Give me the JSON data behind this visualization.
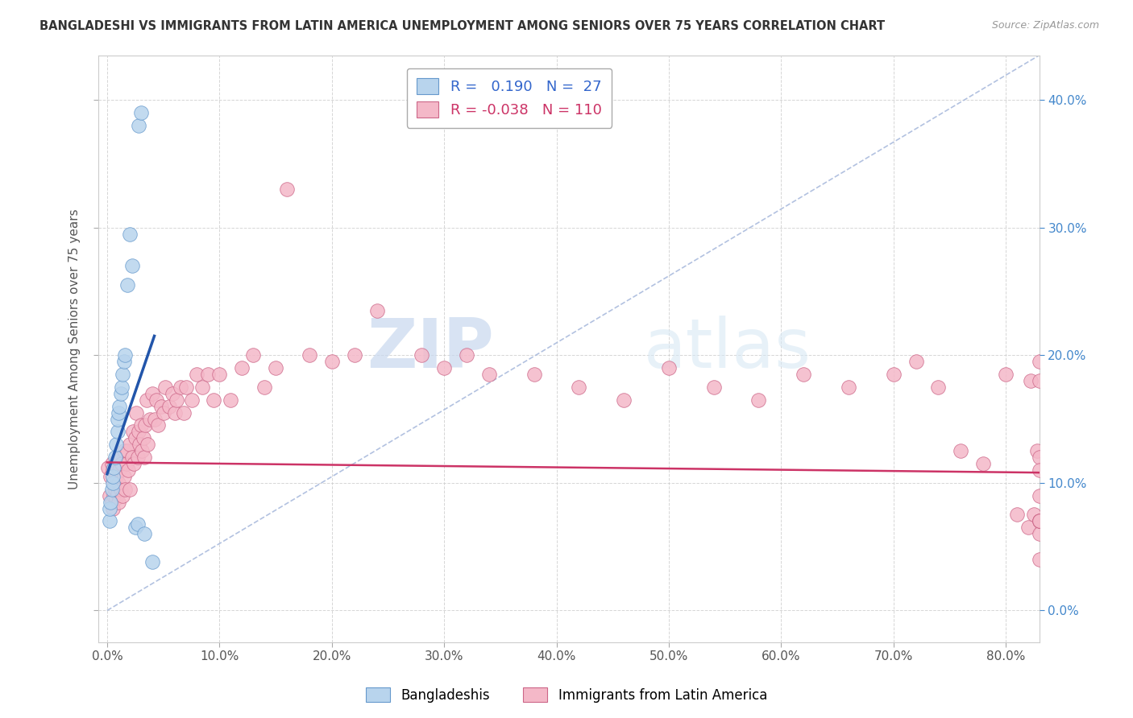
{
  "title": "BANGLADESHI VS IMMIGRANTS FROM LATIN AMERICA UNEMPLOYMENT AMONG SENIORS OVER 75 YEARS CORRELATION CHART",
  "source": "Source: ZipAtlas.com",
  "ylabel": "Unemployment Among Seniors over 75 years",
  "R_blue": 0.19,
  "N_blue": 27,
  "R_pink": -0.038,
  "N_pink": 110,
  "legend_label_blue": "Bangladeshis",
  "legend_label_pink": "Immigrants from Latin America",
  "blue_color": "#b8d4ed",
  "blue_edge_color": "#6699cc",
  "blue_line_color": "#2255aa",
  "pink_color": "#f4b8c8",
  "pink_edge_color": "#cc6688",
  "pink_line_color": "#cc3366",
  "dashed_line_color": "#aabbdd",
  "background_color": "#ffffff",
  "watermark_zip": "ZIP",
  "watermark_atlas": "atlas",
  "xlim": [
    -0.008,
    0.83
  ],
  "ylim": [
    -0.025,
    0.435
  ],
  "x_tick_vals": [
    0.0,
    0.1,
    0.2,
    0.3,
    0.4,
    0.5,
    0.6,
    0.7,
    0.8
  ],
  "x_tick_labels": [
    "0.0%",
    "10.0%",
    "20.0%",
    "30.0%",
    "40.0%",
    "50.0%",
    "60.0%",
    "70.0%",
    "80.0%"
  ],
  "y_tick_vals": [
    0.0,
    0.1,
    0.2,
    0.3,
    0.4
  ],
  "y_tick_labels_right": [
    "0.0%",
    "10.0%",
    "20.0%",
    "30.0%",
    "40.0%"
  ],
  "blue_x": [
    0.002,
    0.002,
    0.003,
    0.004,
    0.005,
    0.005,
    0.006,
    0.007,
    0.008,
    0.009,
    0.009,
    0.01,
    0.011,
    0.012,
    0.013,
    0.014,
    0.015,
    0.016,
    0.018,
    0.02,
    0.022,
    0.025,
    0.027,
    0.028,
    0.03,
    0.033,
    0.04
  ],
  "blue_y": [
    0.07,
    0.08,
    0.085,
    0.095,
    0.1,
    0.105,
    0.112,
    0.12,
    0.13,
    0.14,
    0.15,
    0.155,
    0.16,
    0.17,
    0.175,
    0.185,
    0.195,
    0.2,
    0.255,
    0.295,
    0.27,
    0.065,
    0.068,
    0.38,
    0.39,
    0.06,
    0.038
  ],
  "pink_x": [
    0.001,
    0.002,
    0.003,
    0.004,
    0.004,
    0.005,
    0.005,
    0.006,
    0.006,
    0.007,
    0.007,
    0.008,
    0.008,
    0.009,
    0.009,
    0.01,
    0.01,
    0.011,
    0.012,
    0.012,
    0.013,
    0.014,
    0.015,
    0.015,
    0.016,
    0.017,
    0.018,
    0.019,
    0.02,
    0.02,
    0.022,
    0.023,
    0.024,
    0.025,
    0.026,
    0.027,
    0.028,
    0.029,
    0.03,
    0.031,
    0.032,
    0.033,
    0.034,
    0.035,
    0.036,
    0.038,
    0.04,
    0.042,
    0.044,
    0.045,
    0.048,
    0.05,
    0.052,
    0.055,
    0.058,
    0.06,
    0.062,
    0.065,
    0.068,
    0.07,
    0.075,
    0.08,
    0.085,
    0.09,
    0.095,
    0.1,
    0.11,
    0.12,
    0.13,
    0.14,
    0.15,
    0.16,
    0.18,
    0.2,
    0.22,
    0.24,
    0.28,
    0.3,
    0.32,
    0.34,
    0.38,
    0.42,
    0.46,
    0.5,
    0.54,
    0.58,
    0.62,
    0.66,
    0.7,
    0.72,
    0.74,
    0.76,
    0.78,
    0.8,
    0.81,
    0.82,
    0.822,
    0.825,
    0.828,
    0.83,
    0.83,
    0.83,
    0.83,
    0.83,
    0.83,
    0.83,
    0.83,
    0.83,
    0.83,
    0.83
  ],
  "pink_y": [
    0.112,
    0.09,
    0.105,
    0.085,
    0.115,
    0.08,
    0.11,
    0.09,
    0.1,
    0.115,
    0.095,
    0.088,
    0.105,
    0.092,
    0.118,
    0.085,
    0.1,
    0.11,
    0.12,
    0.095,
    0.115,
    0.09,
    0.105,
    0.125,
    0.095,
    0.115,
    0.125,
    0.11,
    0.13,
    0.095,
    0.12,
    0.14,
    0.115,
    0.135,
    0.155,
    0.12,
    0.14,
    0.13,
    0.145,
    0.125,
    0.135,
    0.12,
    0.145,
    0.165,
    0.13,
    0.15,
    0.17,
    0.15,
    0.165,
    0.145,
    0.16,
    0.155,
    0.175,
    0.16,
    0.17,
    0.155,
    0.165,
    0.175,
    0.155,
    0.175,
    0.165,
    0.185,
    0.175,
    0.185,
    0.165,
    0.185,
    0.165,
    0.19,
    0.2,
    0.175,
    0.19,
    0.33,
    0.2,
    0.195,
    0.2,
    0.235,
    0.2,
    0.19,
    0.2,
    0.185,
    0.185,
    0.175,
    0.165,
    0.19,
    0.175,
    0.165,
    0.185,
    0.175,
    0.185,
    0.195,
    0.175,
    0.125,
    0.115,
    0.185,
    0.075,
    0.065,
    0.18,
    0.075,
    0.125,
    0.195,
    0.18,
    0.09,
    0.06,
    0.12,
    0.07,
    0.07,
    0.07,
    0.07,
    0.04,
    0.11
  ],
  "blue_line_x": [
    0.0,
    0.042
  ],
  "blue_line_y": [
    0.107,
    0.215
  ],
  "pink_line_x": [
    0.0,
    0.83
  ],
  "pink_line_y": [
    0.116,
    0.108
  ],
  "diag_line_x": [
    0.0,
    0.83
  ],
  "diag_line_y": [
    0.0,
    0.435
  ]
}
